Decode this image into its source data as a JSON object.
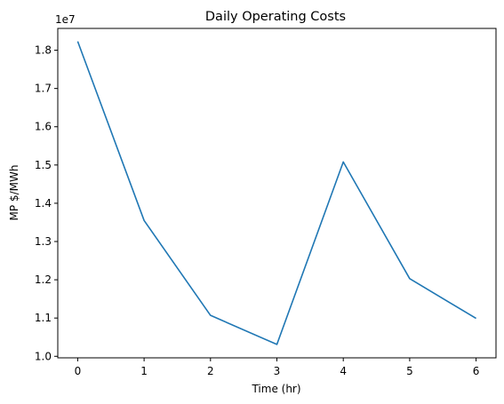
{
  "chart_data": {
    "type": "line",
    "title": "Daily Operating Costs",
    "xlabel": "Time (hr)",
    "ylabel": "MP $/MWh",
    "scale_label": "1e7",
    "x": [
      0,
      1,
      2,
      3,
      4,
      5,
      6
    ],
    "series": [
      {
        "values": [
          18230000,
          13550000,
          11070000,
          10310000,
          15080000,
          12030000,
          10990000
        ]
      }
    ],
    "xlim": [
      -0.3,
      6.3
    ],
    "ylim": [
      9960000,
      18570000
    ],
    "xticks": [
      0,
      1,
      2,
      3,
      4,
      5,
      6
    ],
    "xtick_labels": [
      "0",
      "1",
      "2",
      "3",
      "4",
      "5",
      "6"
    ],
    "yticks": [
      10000000,
      11000000,
      12000000,
      13000000,
      14000000,
      15000000,
      16000000,
      17000000,
      18000000
    ],
    "ytick_labels": [
      "1.0",
      "1.1",
      "1.2",
      "1.3",
      "1.4",
      "1.5",
      "1.6",
      "1.7",
      "1.8"
    ],
    "grid": false,
    "line_color": "#1f77b4"
  }
}
